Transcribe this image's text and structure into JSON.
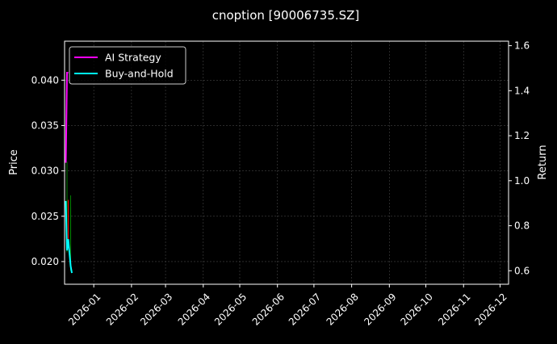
{
  "chart_data": {
    "type": "line",
    "title": "cnoption [90006735.SZ]",
    "xlabel": "",
    "ylabel": "Price",
    "ylabel_right": "Return",
    "xlim": [
      "2025-12-08",
      "2026-12-08"
    ],
    "ylim": [
      0.0175,
      0.0443
    ],
    "ylim_right": [
      0.54,
      1.62
    ],
    "grid": true,
    "legend_placement": "top-left",
    "x_ticks": [
      "2026-01",
      "2026-02",
      "2026-03",
      "2026-04",
      "2026-05",
      "2026-06",
      "2026-07",
      "2026-08",
      "2026-09",
      "2026-10",
      "2026-11",
      "2026-12"
    ],
    "y_ticks": [
      "0.020",
      "0.025",
      "0.030",
      "0.035",
      "0.040"
    ],
    "y_ticks_right": [
      "0.6",
      "0.8",
      "1.0",
      "1.2",
      "1.4",
      "1.6"
    ],
    "candles": [
      {
        "date": "2025-12-10",
        "open": 0.0215,
        "high": 0.031,
        "low": 0.021,
        "close": 0.029,
        "direction": "up"
      },
      {
        "date": "2025-12-11",
        "open": 0.0267,
        "high": 0.0268,
        "low": 0.0224,
        "close": 0.0225,
        "direction": "down"
      },
      {
        "date": "2025-12-13",
        "open": 0.0195,
        "high": 0.0273,
        "low": 0.019,
        "close": 0.026,
        "direction": "up"
      }
    ],
    "series": [
      {
        "name": "AI Strategy",
        "axis": "right",
        "color": "#ff00ff",
        "x": [
          "2025-12-09",
          "2025-12-10",
          "2025-12-11"
        ],
        "values": [
          1.08,
          1.48,
          1.48
        ]
      },
      {
        "name": "Buy-and-Hold",
        "axis": "right",
        "color": "#00ffff",
        "x": [
          "2025-12-09",
          "2025-12-10",
          "2025-12-11",
          "2025-12-12",
          "2025-12-13",
          "2025-12-14"
        ],
        "values": [
          0.91,
          0.69,
          0.74,
          0.68,
          0.62,
          0.59
        ]
      }
    ],
    "colors": {
      "up": "#008000",
      "down": "#ff0000",
      "background": "#000000",
      "grid": "#444444"
    }
  }
}
